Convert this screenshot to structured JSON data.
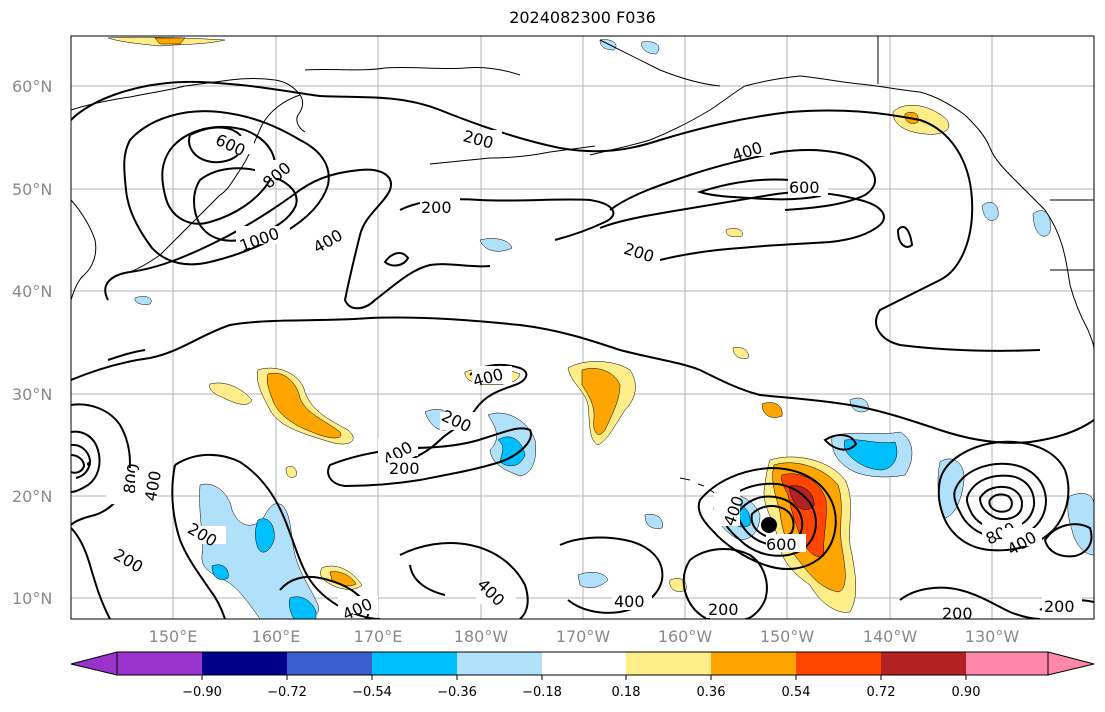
{
  "title": "2024082300 F036",
  "latitude_labels": [
    "60°N",
    "50°N",
    "40°N",
    "30°N",
    "20°N",
    "10°N"
  ],
  "longitude_labels": [
    "150°E",
    "160°E",
    "170°E",
    "180°W",
    "170°W",
    "160°W",
    "150°W",
    "140°W",
    "130°W"
  ],
  "colorbar": {
    "tick_labels": [
      "−0.90",
      "−0.72",
      "−0.54",
      "−0.36",
      "−0.18",
      "0.18",
      "0.36",
      "0.54",
      "0.72",
      "0.90"
    ],
    "colors": [
      "#9933cc",
      "#00008b",
      "#3a5fcd",
      "#00bfff",
      "#b0e0fa",
      "#ffffff",
      "#ffed8a",
      "#ffa500",
      "#ff4500",
      "#b22222",
      "#ff88aa"
    ]
  },
  "contour_labels": [
    "200",
    "400",
    "600",
    "800",
    "1000"
  ],
  "shading_colors": {
    "yellow": "#ffed8a",
    "orange": "#ffa500",
    "red": "#ff4500",
    "darkred": "#b22222",
    "lightblue": "#b0e0fa",
    "blue": "#00bfff"
  }
}
